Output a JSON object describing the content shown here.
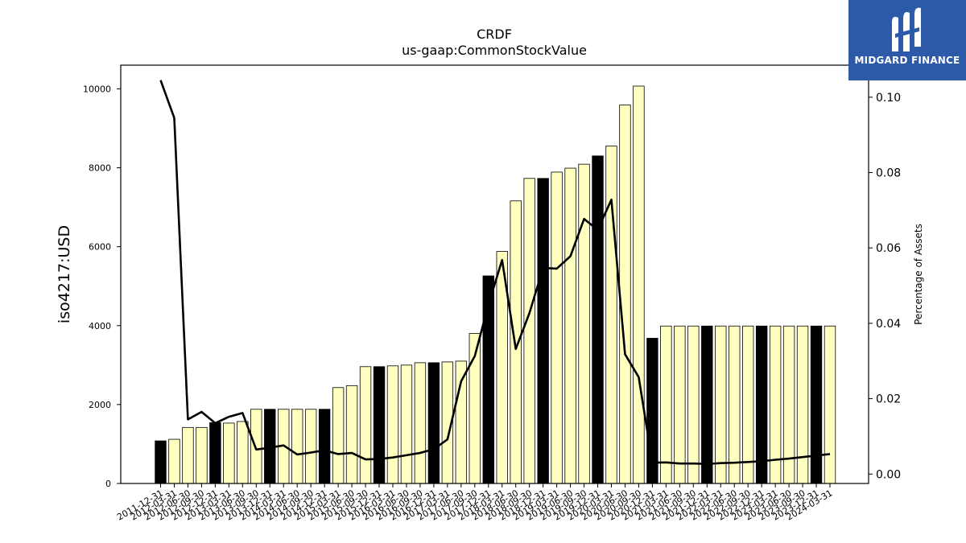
{
  "chart_data": {
    "type": "bar",
    "title": "CRDF",
    "subtitle": "us-gaap:CommonStockValue",
    "ylabel": "iso4217:USD",
    "y2label": "Percentage of Assets",
    "ylim": [
      0,
      10600
    ],
    "y2lim": [
      -0.0025,
      0.1085
    ],
    "yticks": [
      0,
      2000,
      4000,
      6000,
      8000,
      10000
    ],
    "y2ticks": [
      "0.00",
      "0.02",
      "0.04",
      "0.06",
      "0.08",
      "0.10"
    ],
    "categories": [
      "2011-12-31",
      "2012-03-31",
      "2012-06-30",
      "2012-09-30",
      "2012-12-31",
      "2013-03-31",
      "2013-06-30",
      "2013-09-30",
      "2013-12-31",
      "2014-03-31",
      "2014-06-30",
      "2014-09-30",
      "2014-12-31",
      "2015-03-31",
      "2015-06-30",
      "2015-09-30",
      "2015-12-31",
      "2016-03-31",
      "2016-06-30",
      "2016-09-30",
      "2016-12-31",
      "2017-03-31",
      "2017-06-30",
      "2017-09-30",
      "2017-12-31",
      "2018-03-31",
      "2018-06-30",
      "2018-09-30",
      "2018-12-31",
      "2019-03-31",
      "2019-06-30",
      "2019-09-30",
      "2019-12-31",
      "2020-03-31",
      "2020-06-30",
      "2020-09-30",
      "2020-12-31",
      "2021-03-31",
      "2021-06-30",
      "2021-09-30",
      "2021-12-31",
      "2022-03-31",
      "2022-06-30",
      "2022-09-30",
      "2022-12-31",
      "2023-03-31",
      "2023-06-30",
      "2023-09-30",
      "2023-12-31",
      "2024-03-31"
    ],
    "series": [
      {
        "values": [
          1080,
          1120,
          1420,
          1420,
          1540,
          1530,
          1570,
          1880,
          1880,
          1880,
          1880,
          1880,
          1880,
          2430,
          2480,
          2960,
          2960,
          2980,
          3000,
          3060,
          3060,
          3080,
          3100,
          3800,
          5260,
          5880,
          7160,
          7730,
          7730,
          7890,
          7990,
          8090,
          8300,
          8550,
          9590,
          10070,
          3680,
          3990,
          3990,
          3990,
          3990,
          3990,
          3990,
          3990,
          3990,
          3990,
          3990,
          3990,
          3990,
          3990
        ]
      },
      {
        "type": "line",
        "axis": "right",
        "values": [
          0.1045,
          0.0945,
          0.0145,
          0.0165,
          0.0135,
          0.0152,
          0.0162,
          0.0065,
          0.007,
          0.0076,
          0.0052,
          0.0057,
          0.0063,
          0.0053,
          0.0056,
          0.0039,
          0.004,
          0.0044,
          0.005,
          0.0056,
          0.0066,
          0.0092,
          0.0246,
          0.0313,
          0.045,
          0.0568,
          0.0332,
          0.0427,
          0.0547,
          0.0545,
          0.0578,
          0.0677,
          0.0648,
          0.0728,
          0.0318,
          0.0257,
          0.003,
          0.0031,
          0.0028,
          0.0028,
          0.0027,
          0.0029,
          0.003,
          0.0032,
          0.0034,
          0.0038,
          0.0041,
          0.0045,
          0.0049,
          0.0053
        ]
      }
    ],
    "highlight_indices": [
      0,
      4,
      8,
      12,
      16,
      20,
      24,
      28,
      32,
      36,
      40,
      44,
      48
    ],
    "colors": {
      "bar_fill": "#ffffc0",
      "bar_highlight": "#000000",
      "bar_edge": "#000000",
      "line": "#000000"
    },
    "grid": false,
    "legend": "none"
  },
  "logo": {
    "text": "MIDGARD FINANCE",
    "icon": "midgard-logo-icon",
    "bg_color": "#2d5aa8"
  }
}
